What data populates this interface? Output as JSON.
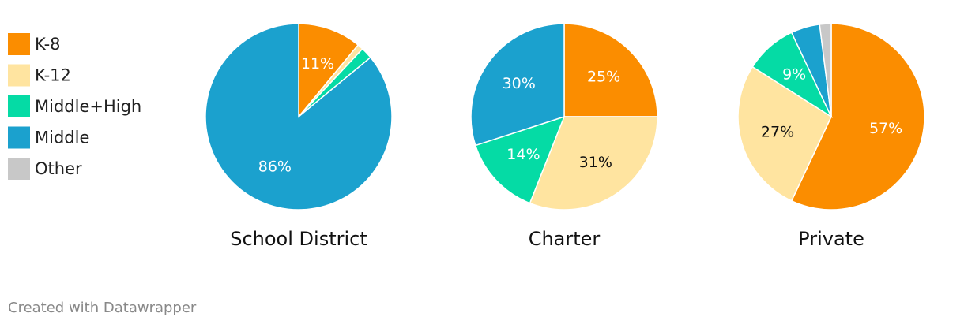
{
  "chart_data": [
    {
      "type": "pie",
      "title": "School District",
      "values": [
        11,
        1,
        2,
        86,
        0
      ],
      "value_labels": [
        "11%",
        null,
        null,
        "86%",
        null
      ]
    },
    {
      "type": "pie",
      "title": "Charter",
      "values": [
        25,
        31,
        14,
        30,
        0
      ],
      "value_labels": [
        "25%",
        "31%",
        "14%",
        "30%",
        null
      ]
    },
    {
      "type": "pie",
      "title": "Private",
      "values": [
        57,
        27,
        9,
        5,
        2
      ],
      "value_labels": [
        "57%",
        "27%",
        "9%",
        null,
        null
      ]
    }
  ],
  "legend": {
    "categories": [
      "K-8",
      "K-12",
      "Middle+High",
      "Middle",
      "Other"
    ],
    "colors": [
      "#fb8d00",
      "#ffe4a0",
      "#05dba5",
      "#1ba1ce",
      "#c8c8c8"
    ]
  },
  "footer": "Created with Datawrapper"
}
